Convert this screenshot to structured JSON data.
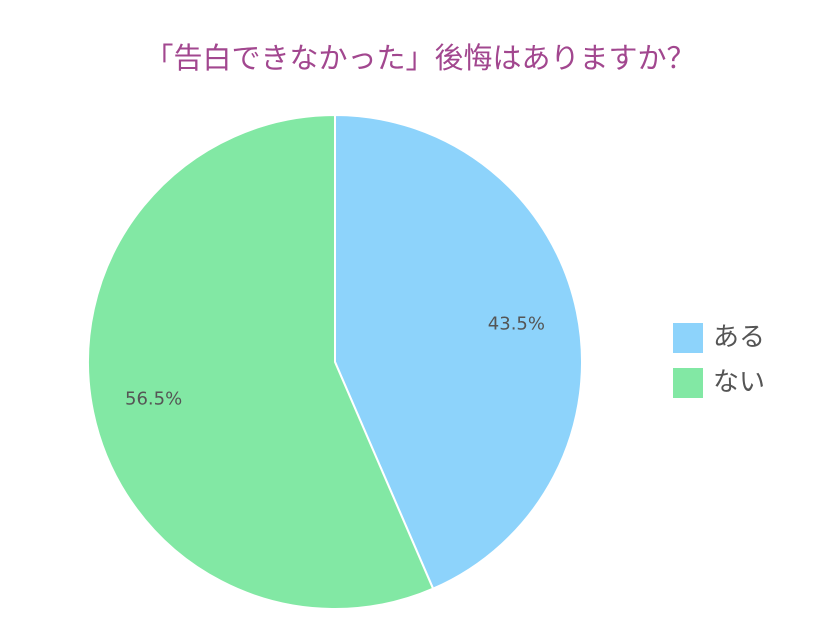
{
  "chart_data": {
    "type": "pie",
    "title": "「告白できなかった」後悔はありますか？",
    "categories": [
      "ある",
      "ない"
    ],
    "values": [
      43.5,
      56.5
    ],
    "value_labels": [
      "43.5%",
      "56.5%"
    ],
    "colors": [
      "#8dd3fb",
      "#82e8a4"
    ],
    "legend": "right"
  }
}
